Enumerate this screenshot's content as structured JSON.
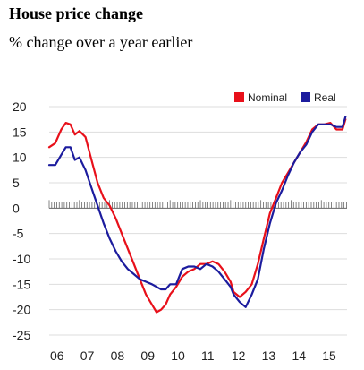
{
  "header": {
    "title": "House price change",
    "subtitle": "% change over a year earlier"
  },
  "colors": {
    "nominal": "#e8101a",
    "real": "#1c1c9e",
    "gridline": "#dddddd",
    "zero_axis": "#666666"
  },
  "chart_data": {
    "type": "line",
    "title": "House price change",
    "subtitle": "% change over a year earlier",
    "xlabel": "",
    "ylabel": "",
    "ylim": [
      -25,
      20
    ],
    "xlim": [
      2006.0,
      2015.85
    ],
    "grid": "horizontal",
    "legend_position": "top-right",
    "y_ticks": [
      "20",
      "15",
      "10",
      "5",
      "0",
      "-5",
      "-10",
      "-15",
      "-20",
      "-25"
    ],
    "y_tick_values": [
      20,
      15,
      10,
      5,
      0,
      -5,
      -10,
      -15,
      -20,
      -25
    ],
    "x_ticks": [
      "06",
      "07",
      "08",
      "09",
      "10",
      "11",
      "12",
      "13",
      "14",
      "15"
    ],
    "x_tick_values": [
      2006,
      2007,
      2008,
      2009,
      2010,
      2011,
      2012,
      2013,
      2014,
      2015
    ],
    "legend": [
      "Nominal",
      "Real"
    ],
    "series": [
      {
        "name": "Nominal",
        "x": [
          2006.0,
          2006.2,
          2006.4,
          2006.55,
          2006.7,
          2006.85,
          2007.0,
          2007.2,
          2007.4,
          2007.6,
          2007.8,
          2008.0,
          2008.2,
          2008.4,
          2008.6,
          2008.8,
          2009.0,
          2009.2,
          2009.4,
          2009.55,
          2009.7,
          2009.85,
          2010.0,
          2010.2,
          2010.4,
          2010.6,
          2010.8,
          2011.0,
          2011.2,
          2011.4,
          2011.6,
          2011.8,
          2012.0,
          2012.1,
          2012.3,
          2012.5,
          2012.7,
          2012.9,
          2013.1,
          2013.3,
          2013.5,
          2013.7,
          2013.9,
          2014.1,
          2014.3,
          2014.5,
          2014.7,
          2014.9,
          2015.1,
          2015.3,
          2015.5,
          2015.7,
          2015.8
        ],
        "values": [
          12,
          12.8,
          15.5,
          16.8,
          16.5,
          14.5,
          15.2,
          14,
          9.5,
          5,
          2,
          0.5,
          -2,
          -5,
          -8,
          -11,
          -14,
          -17,
          -19,
          -20.5,
          -20,
          -19,
          -17,
          -15.5,
          -13.5,
          -12.5,
          -12,
          -11,
          -11,
          -10.5,
          -11,
          -12.5,
          -14.5,
          -16.5,
          -17.5,
          -16.5,
          -15,
          -11,
          -6,
          -1,
          2,
          5,
          7,
          9,
          11,
          13,
          15.5,
          16.5,
          16.5,
          16.8,
          15.5,
          15.5,
          17.5
        ]
      },
      {
        "name": "Real",
        "x": [
          2006.0,
          2006.2,
          2006.4,
          2006.55,
          2006.7,
          2006.85,
          2007.0,
          2007.2,
          2007.4,
          2007.6,
          2007.8,
          2008.0,
          2008.2,
          2008.4,
          2008.6,
          2008.8,
          2009.0,
          2009.2,
          2009.4,
          2009.55,
          2009.7,
          2009.85,
          2010.0,
          2010.2,
          2010.4,
          2010.6,
          2010.8,
          2011.0,
          2011.2,
          2011.4,
          2011.6,
          2011.8,
          2012.0,
          2012.1,
          2012.3,
          2012.5,
          2012.7,
          2012.9,
          2013.1,
          2013.3,
          2013.5,
          2013.7,
          2013.9,
          2014.1,
          2014.3,
          2014.5,
          2014.7,
          2014.9,
          2015.1,
          2015.3,
          2015.5,
          2015.7,
          2015.8
        ],
        "values": [
          8.5,
          8.5,
          10.5,
          12,
          12,
          9.5,
          10,
          7.5,
          4,
          0.5,
          -3,
          -6,
          -8.5,
          -10.5,
          -12,
          -13,
          -14,
          -14.5,
          -15,
          -15.5,
          -16,
          -16,
          -15,
          -15,
          -12,
          -11.5,
          -11.5,
          -12,
          -11,
          -11.5,
          -12.5,
          -14,
          -15.5,
          -17,
          -18.5,
          -19.5,
          -17,
          -14,
          -8,
          -3,
          1,
          3.5,
          6.5,
          9,
          11,
          12.5,
          15,
          16.5,
          16.5,
          16.5,
          16,
          16,
          18
        ]
      }
    ]
  }
}
